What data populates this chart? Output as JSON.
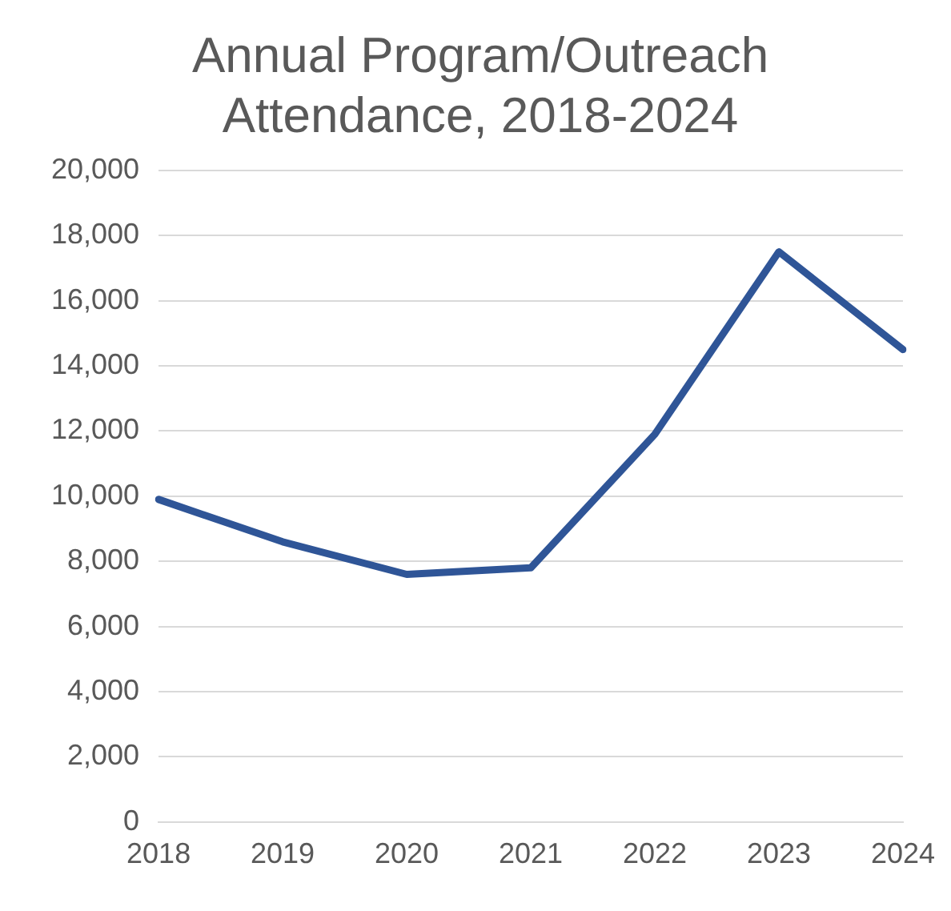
{
  "chart_data": {
    "type": "line",
    "title": "Annual Program/Outreach Attendance, 2018-2024",
    "categories": [
      "2018",
      "2019",
      "2020",
      "2021",
      "2022",
      "2023",
      "2024"
    ],
    "series": [
      {
        "color": "#2f5597",
        "values": [
          9900,
          8600,
          7600,
          7800,
          11900,
          17500,
          14500
        ]
      }
    ],
    "ylim": [
      0,
      20000
    ],
    "yticks": [
      0,
      {
        "value": 2000,
        "label": "2,000"
      },
      {
        "value": 4000,
        "label": "4,000"
      },
      {
        "value": 6000,
        "label": "6,000"
      },
      {
        "value": 8000,
        "label": "8,000"
      },
      {
        "value": 10000,
        "label": "10,000"
      },
      {
        "value": 12000,
        "label": "12,000"
      },
      {
        "value": 14000,
        "label": "14,000"
      },
      {
        "value": 16000,
        "label": "16,000"
      },
      {
        "value": 18000,
        "label": "18,000"
      },
      {
        "value": 20000,
        "label": "20,000"
      }
    ],
    "grid": "y",
    "legend": false,
    "marker": "none",
    "line_style": "solid"
  }
}
